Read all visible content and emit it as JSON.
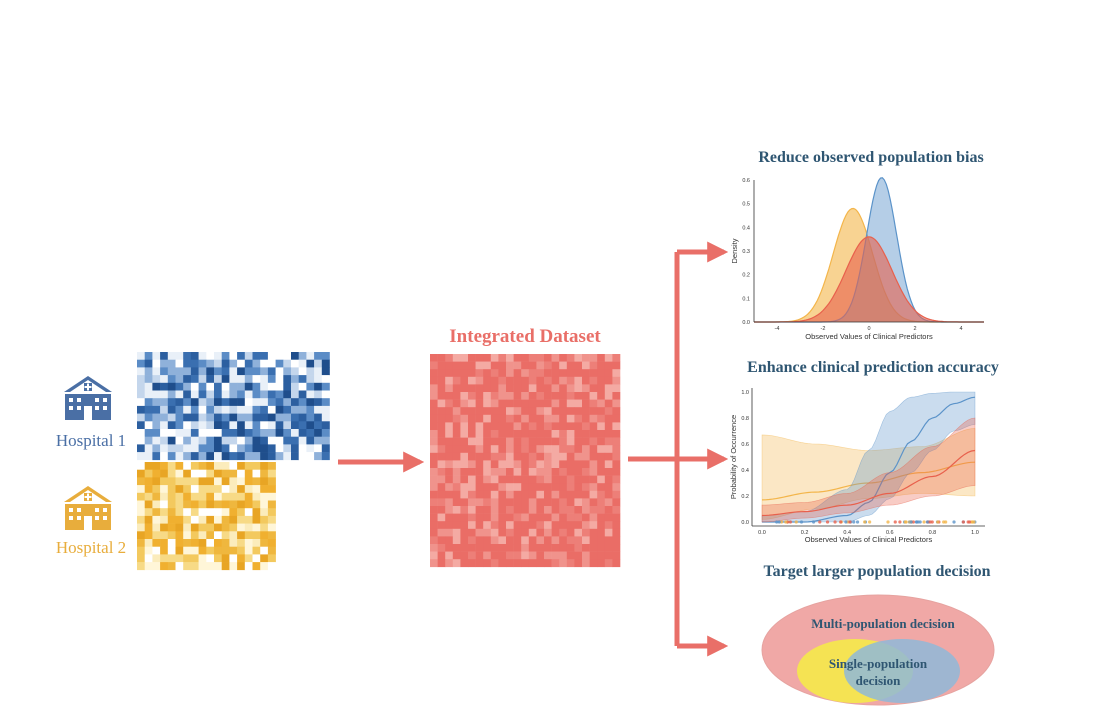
{
  "sources": {
    "hospital1": {
      "label": "Hospital 1",
      "color": "#4a6fa5",
      "icon": "hospital-icon"
    },
    "hospital2": {
      "label": "Hospital 2",
      "color": "#e8ad3c",
      "icon": "hospital-icon"
    }
  },
  "integrated": {
    "title": "Integrated Dataset",
    "color": "#e96f68"
  },
  "outcomes": [
    {
      "title": "Reduce observed population bias"
    },
    {
      "title": "Enhance clinical prediction accuracy"
    },
    {
      "title": "Target larger population decision"
    }
  ],
  "density_chart": {
    "type": "area",
    "xlabel": "Observed Values of Clinical Predictors",
    "ylabel": "Density",
    "xlim": [
      -5,
      5
    ],
    "ylim": [
      0,
      0.6
    ],
    "xticks": [
      "-4",
      "-2",
      "0",
      "2",
      "4"
    ],
    "yticks": [
      "0.0",
      "0.1",
      "0.2",
      "0.3",
      "0.4",
      "0.5",
      "0.6"
    ],
    "series": [
      {
        "mean": -0.7,
        "sd": 0.85,
        "peak": 0.48,
        "color": "#f3b54a"
      },
      {
        "mean": 0.55,
        "sd": 0.65,
        "peak": 0.61,
        "color": "#5b93c9"
      },
      {
        "mean": 0.0,
        "sd": 1.0,
        "peak": 0.36,
        "color": "#e8604c"
      }
    ]
  },
  "prob_chart": {
    "type": "line",
    "xlabel": "Observed Values of Clinical Predictors",
    "ylabel": "Probability of Occurrence",
    "xlim": [
      0,
      1
    ],
    "ylim": [
      0,
      1
    ],
    "xticks": [
      "0.0",
      "0.2",
      "0.4",
      "0.6",
      "0.8",
      "1.0"
    ],
    "yticks": [
      "0.0",
      "0.2",
      "0.4",
      "0.6",
      "0.8",
      "1.0"
    ],
    "series": [
      {
        "color": "#f3b54a",
        "x": [
          0,
          0.25,
          0.5,
          0.75,
          1
        ],
        "y": [
          0.17,
          0.23,
          0.3,
          0.38,
          0.46
        ],
        "lo": [
          0.02,
          0.1,
          0.18,
          0.22,
          0.2
        ],
        "hi": [
          0.67,
          0.6,
          0.55,
          0.58,
          0.72
        ]
      },
      {
        "color": "#5b93c9",
        "x": [
          0,
          0.2,
          0.4,
          0.5,
          0.6,
          0.7,
          0.8,
          0.9,
          1
        ],
        "y": [
          0.0,
          0.0,
          0.05,
          0.15,
          0.38,
          0.62,
          0.8,
          0.91,
          0.96
        ],
        "lo": [
          0.0,
          0.0,
          0.0,
          0.05,
          0.18,
          0.38,
          0.55,
          0.7,
          0.75
        ],
        "hi": [
          0.05,
          0.08,
          0.25,
          0.55,
          0.85,
          0.96,
          0.99,
          1.0,
          1.0
        ]
      },
      {
        "color": "#e8604c",
        "x": [
          0,
          0.2,
          0.4,
          0.6,
          0.8,
          1
        ],
        "y": [
          0.05,
          0.08,
          0.13,
          0.22,
          0.35,
          0.55
        ],
        "lo": [
          0.0,
          0.03,
          0.07,
          0.13,
          0.2,
          0.28
        ],
        "hi": [
          0.13,
          0.15,
          0.22,
          0.38,
          0.58,
          0.8
        ]
      }
    ]
  },
  "venn": {
    "outer_label": "Multi-population decision",
    "inner_label_line1": "Single-population",
    "inner_label_line2": "decision",
    "outer_color": "#f0a8a6",
    "yellow_color": "#f5e84c",
    "blue_color": "#8fb8d8"
  },
  "arrow_color": "#e96f68"
}
